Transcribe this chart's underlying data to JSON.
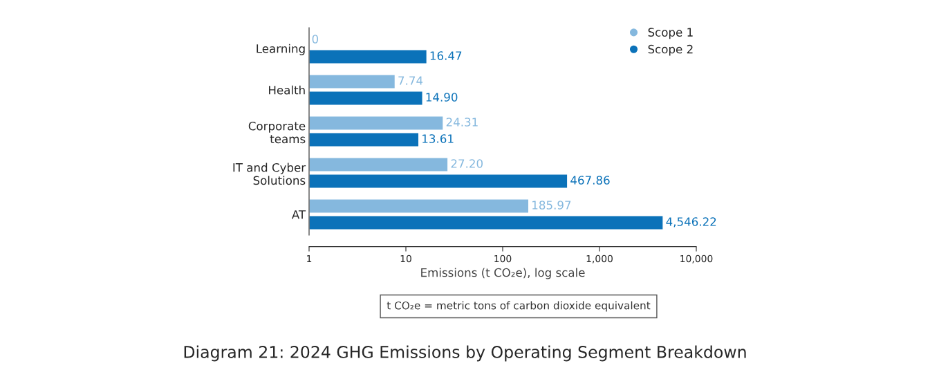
{
  "chart_data": {
    "type": "bar",
    "orientation": "horizontal",
    "title": "Diagram 21: 2024 GHG Emissions by Operating Segment Breakdown",
    "categories": [
      "Learning",
      "Health",
      "Corporate\nteams",
      "IT and Cyber\nSolutions",
      "AT"
    ],
    "series": [
      {
        "name": "Scope 1",
        "color": "#85b8de",
        "values": [
          null,
          7.74,
          24.31,
          27.2,
          185.97
        ],
        "value_labels": [
          "0",
          "7.74",
          "24.31",
          "27.20",
          "185.97"
        ]
      },
      {
        "name": "Scope 2",
        "color": "#0b72b9",
        "values": [
          16.47,
          14.9,
          13.61,
          467.86,
          4546.22
        ],
        "value_labels": [
          "16.47",
          "14.90",
          "13.61",
          "467.86",
          "4,546.22"
        ]
      }
    ],
    "xlabel": "Emissions (t CO₂e), log scale",
    "log": "x",
    "xlim": [
      1,
      10000
    ],
    "xticks": [
      1,
      10,
      100,
      {
        "value": 1000,
        "label": "1,000"
      },
      {
        "value": 10000,
        "label": "10,000"
      }
    ],
    "legend": "top right",
    "grid": false,
    "annotations": [
      "t CO₂e = metric tons of carbon dioxide equivalent"
    ]
  }
}
